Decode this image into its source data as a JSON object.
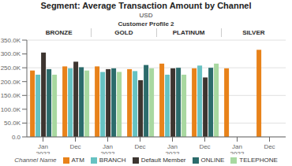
{
  "chart_data": {
    "type": "bar",
    "title": "Segment: Average Transaction Amount by Channel",
    "subtitle": "USD",
    "annotations": [
      "Customer Profile 2"
    ],
    "groups": [
      "BRONZE",
      "GOLD",
      "PLATINUM",
      "SILVER"
    ],
    "categories": [
      "Jan\n2022",
      "Dec",
      "Jan\n2022",
      "Dec",
      "Jan\n2022",
      "Dec",
      "Jan\n2022",
      "Dec"
    ],
    "legend_title": "Channel Name",
    "series": [
      {
        "name": "ATM",
        "color": "#E8821A",
        "values": [
          240000,
          255000,
          255000,
          245000,
          265000,
          248000,
          248000,
          315000
        ]
      },
      {
        "name": "BRANCH",
        "color": "#66C2C2",
        "values": [
          225000,
          248000,
          235000,
          238000,
          225000,
          258000,
          0,
          0
        ]
      },
      {
        "name": "Default Member",
        "color": "#3D3530",
        "values": [
          305000,
          272000,
          245000,
          205000,
          248000,
          215000,
          0,
          0
        ]
      },
      {
        "name": "ONLINE",
        "color": "#2B6B6B",
        "values": [
          245000,
          252000,
          248000,
          260000,
          250000,
          250000,
          0,
          0
        ]
      },
      {
        "name": "TELEPHONE",
        "color": "#A8D8A0",
        "values": [
          225000,
          240000,
          235000,
          248000,
          225000,
          265000,
          0,
          0
        ]
      }
    ],
    "ylim": [
      0,
      350000
    ],
    "yticks": [
      {
        "value": 0,
        "label": "0.0"
      },
      {
        "value": 50000,
        "label": "50.0K"
      },
      {
        "value": 100000,
        "label": "100.0K"
      },
      {
        "value": 150000,
        "label": "150.0K"
      },
      {
        "value": 200000,
        "label": "200.0K"
      },
      {
        "value": 250000,
        "label": "250.0K"
      },
      {
        "value": 300000,
        "label": "300.0K"
      },
      {
        "value": 350000,
        "label": "350.0K"
      }
    ],
    "grid": true,
    "legend": "bottom"
  }
}
